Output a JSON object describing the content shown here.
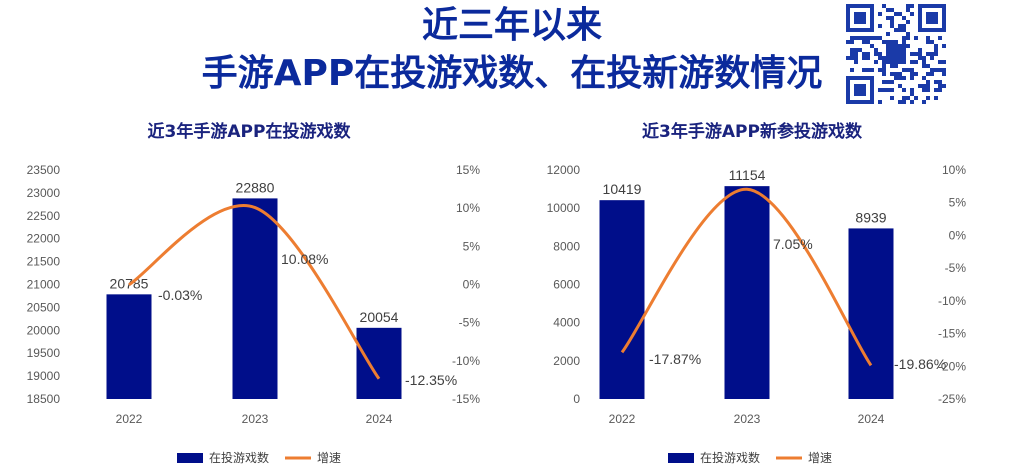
{
  "header": {
    "title_line_1": "近三年以来",
    "title_line_2": "手游APP在投游戏数、在投新游数情况"
  },
  "colors": {
    "title": "#0b2a9c",
    "bar": "#000e8a",
    "line": "#ed7d31",
    "axis_text": "#595959"
  },
  "icons": {
    "qr": "qr-code-icon"
  },
  "chart_data": [
    {
      "type": "bar",
      "title": "近3年手游APP在投游戏数",
      "categories": [
        "2022",
        "2023",
        "2024"
      ],
      "series": [
        {
          "name": "在投游戏数",
          "type": "bar",
          "axis": "left",
          "values": [
            20785,
            22880,
            20054
          ],
          "labels": [
            "20785",
            "22880",
            "20054"
          ]
        },
        {
          "name": "增速",
          "type": "line",
          "axis": "right",
          "values": [
            -0.03,
            10.08,
            -12.35
          ],
          "labels": [
            "-0.03%",
            "10.08%",
            "-12.35%"
          ]
        }
      ],
      "ylim_left": [
        18500,
        23500
      ],
      "yticks_left": [
        "18500",
        "19000",
        "19500",
        "20000",
        "20500",
        "21000",
        "21500",
        "22000",
        "22500",
        "23000",
        "23500"
      ],
      "ylim_right": [
        -15,
        15
      ],
      "yticks_right": [
        "-15%",
        "-10%",
        "-5%",
        "0%",
        "5%",
        "10%",
        "15%"
      ],
      "legend_position": "bottom",
      "grid": false
    },
    {
      "type": "bar",
      "title": "近3年手游APP新参投游戏数",
      "categories": [
        "2022",
        "2023",
        "2024"
      ],
      "series": [
        {
          "name": "在投游戏数",
          "type": "bar",
          "axis": "left",
          "values": [
            10419,
            11154,
            8939
          ],
          "labels": [
            "10419",
            "11154",
            "8939"
          ]
        },
        {
          "name": "增速",
          "type": "line",
          "axis": "right",
          "values": [
            -17.87,
            7.05,
            -19.86
          ],
          "labels": [
            "-17.87%",
            "7.05%",
            "-19.86%"
          ]
        }
      ],
      "ylim_left": [
        0,
        12000
      ],
      "yticks_left": [
        "0",
        "2000",
        "4000",
        "6000",
        "8000",
        "10000",
        "12000"
      ],
      "ylim_right": [
        -25,
        10
      ],
      "yticks_right": [
        "-25%",
        "-20%",
        "-15%",
        "-10%",
        "-5%",
        "0%",
        "5%",
        "10%"
      ],
      "legend_position": "bottom",
      "grid": false
    }
  ]
}
